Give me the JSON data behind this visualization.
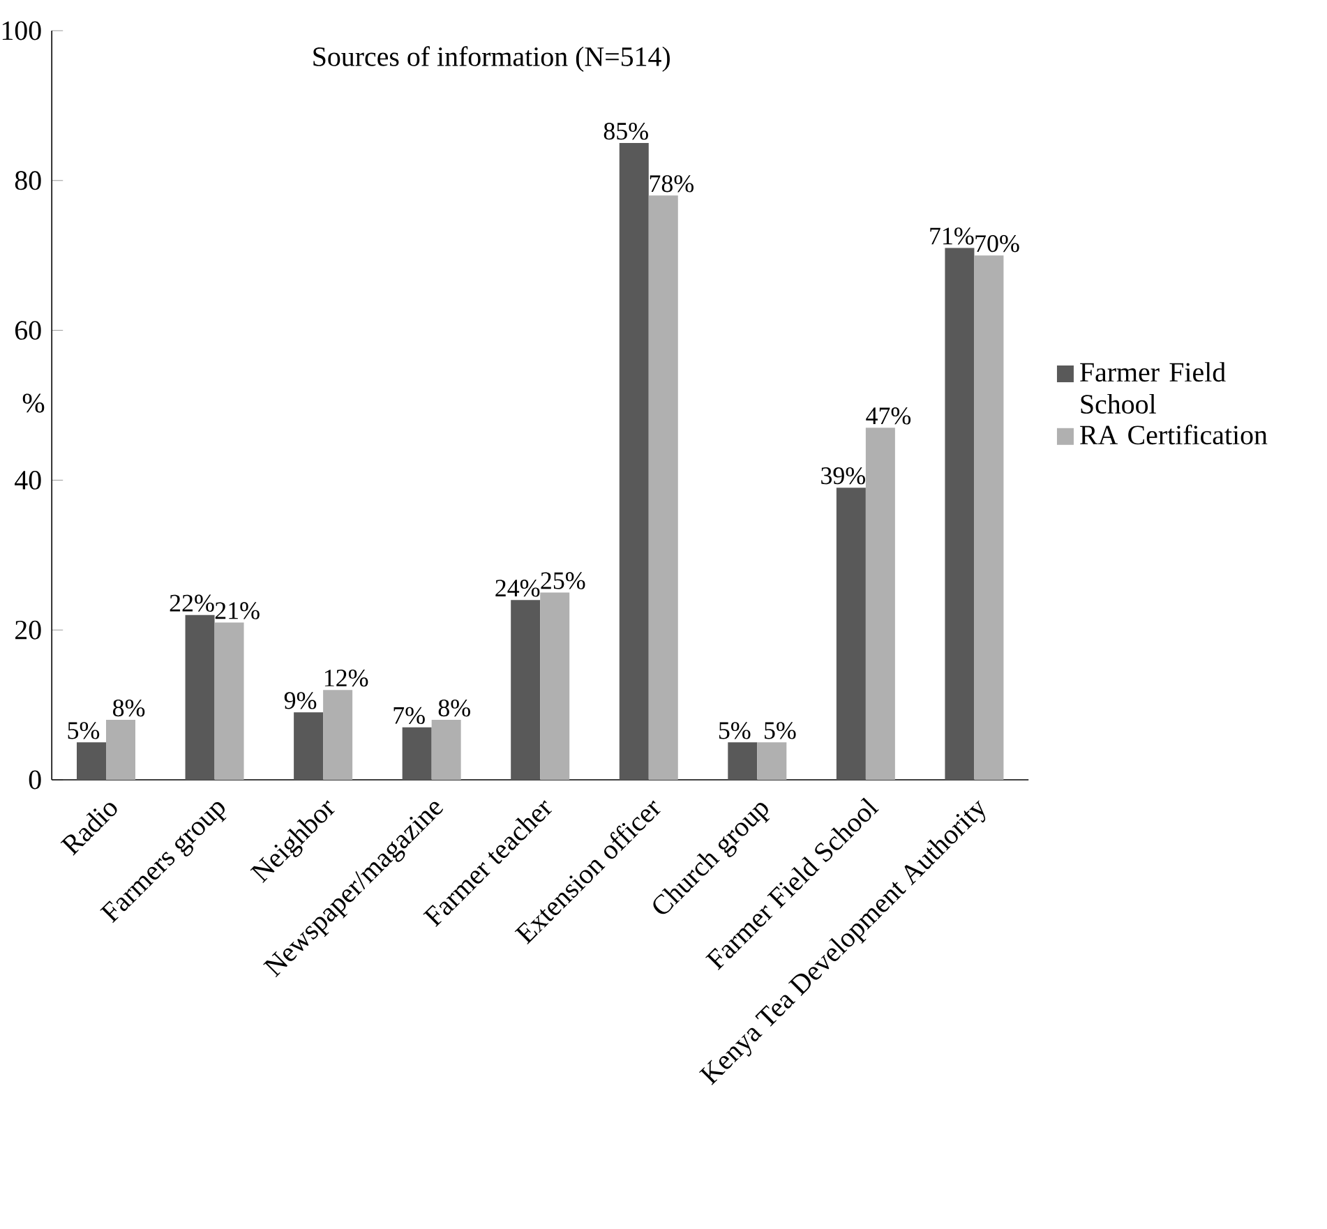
{
  "chart_data": {
    "type": "bar",
    "title": "Sources of information (N=514)",
    "ylabel": "%",
    "categories": [
      "Radio",
      "Farmers group",
      "Neighbor",
      "Newspaper/magazine",
      "Farmer teacher",
      "Extension officer",
      "Church group",
      "Farmer Field School",
      "Kenya Tea Development Authority"
    ],
    "series": [
      {
        "name": "Farmer Field School",
        "color": "#595959",
        "values": [
          5,
          22,
          9,
          7,
          24,
          85,
          5,
          39,
          71
        ],
        "value_labels": [
          "5%",
          "22%",
          "9%",
          "7%",
          "24%",
          "85%",
          "5%",
          "39%",
          "71%"
        ]
      },
      {
        "name": "RA Certification",
        "color": "#b0b0b0",
        "values": [
          8,
          21,
          12,
          8,
          25,
          78,
          5,
          47,
          70
        ],
        "value_labels": [
          "8%",
          "21%",
          "12%",
          "8%",
          "25%",
          "78%",
          "5%",
          "47%",
          "70%"
        ]
      }
    ],
    "ylim": [
      0,
      100
    ],
    "yticks": [
      0,
      20,
      40,
      60,
      80,
      100
    ],
    "grid": false,
    "legend": "right"
  }
}
